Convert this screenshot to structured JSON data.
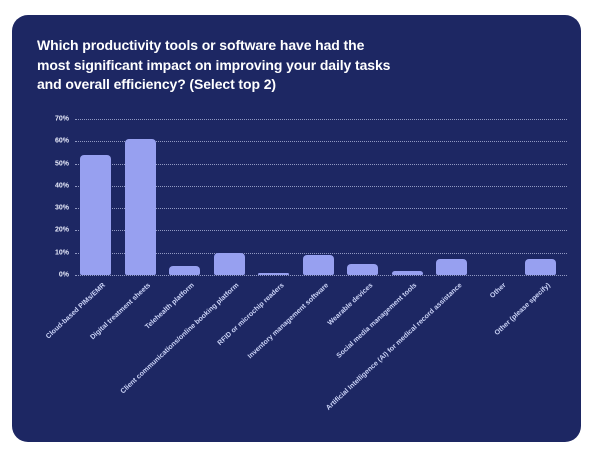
{
  "card": {
    "background_color": "#1d2763",
    "title_lines": [
      "Which productivity tools or software have had the",
      "most significant impact on improving your daily tasks",
      "and overall efficiency? (Select top 2)"
    ]
  },
  "chart_data": {
    "type": "bar",
    "title": "Which productivity tools or software have had the most significant impact on improving your daily tasks and overall efficiency? (Select top 2)",
    "categories": [
      "Cloud-based PIMs/EMR",
      "Digital treatment sheets",
      "Telehealth platform",
      "Client communications/online booking platform",
      "RFID or microchip readers",
      "Inventory management software",
      "Wearable devices",
      "Social media management tools",
      "Artificial Intelligence (AI) for medical record assistance",
      "Other",
      "Other (please specify)"
    ],
    "values": [
      54,
      61,
      4,
      10,
      1,
      9,
      5,
      2,
      7,
      0,
      7
    ],
    "value_unit": "%",
    "xlabel": "",
    "ylabel": "",
    "ylim": [
      0,
      70
    ],
    "ytick_labels": [
      "0%",
      "10%",
      "20%",
      "30%",
      "40%",
      "50%",
      "60%",
      "70%"
    ],
    "grid": "horizontal-dotted",
    "legend": "none",
    "bar_color": "#97a0f0",
    "axis_label_color": "#ccd4f8",
    "tick_label_color": "#e9ecfc",
    "background_color": "#1d2763"
  }
}
